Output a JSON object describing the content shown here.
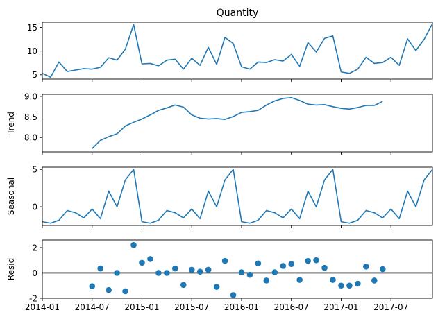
{
  "chart_data": {
    "type": "line",
    "title": "Quantity",
    "dates": [
      "2014-01",
      "2014-02",
      "2014-03",
      "2014-04",
      "2014-05",
      "2014-06",
      "2014-07",
      "2014-08",
      "2014-09",
      "2014-10",
      "2014-11",
      "2014-12",
      "2015-01",
      "2015-02",
      "2015-03",
      "2015-04",
      "2015-05",
      "2015-06",
      "2015-07",
      "2015-08",
      "2015-09",
      "2015-10",
      "2015-11",
      "2015-12",
      "2016-01",
      "2016-02",
      "2016-03",
      "2016-04",
      "2016-05",
      "2016-06",
      "2016-07",
      "2016-08",
      "2016-09",
      "2016-10",
      "2016-11",
      "2016-12",
      "2017-01",
      "2017-02",
      "2017-03",
      "2017-04",
      "2017-05",
      "2017-06",
      "2017-07",
      "2017-08",
      "2017-09",
      "2017-10",
      "2017-11",
      "2017-12"
    ],
    "x_tick_labels": [
      "2014-01",
      "2014-07",
      "2015-01",
      "2015-07",
      "2016-01",
      "2016-07",
      "2017-01",
      "2017-07"
    ],
    "x_tick_positions": [
      "2014-01",
      "2014-07",
      "2015-01",
      "2015-07",
      "2016-01",
      "2016-07",
      "2017-01",
      "2017-07"
    ],
    "xlim": [
      "2014-01",
      "2017-12"
    ],
    "panels": [
      {
        "name": "observed",
        "ylabel": "",
        "ylim": [
          4.1,
          16.1
        ],
        "yticks": [
          5,
          10,
          15
        ],
        "kind": "line",
        "values": [
          5.3,
          4.5,
          7.7,
          5.7,
          6.0,
          6.3,
          6.2,
          6.6,
          8.6,
          8.1,
          10.4,
          15.6,
          7.3,
          7.4,
          6.9,
          8.1,
          8.3,
          6.2,
          8.5,
          7.0,
          10.8,
          7.2,
          12.9,
          11.6,
          6.7,
          6.2,
          7.7,
          7.6,
          8.2,
          7.9,
          9.3,
          6.8,
          11.8,
          9.8,
          12.7,
          13.2,
          5.6,
          5.3,
          6.2,
          8.7,
          7.4,
          7.6,
          8.7,
          7.0,
          12.6,
          10.1,
          12.5,
          15.8
        ]
      },
      {
        "name": "trend",
        "ylabel": "Trend",
        "ylim": [
          7.65,
          9.05
        ],
        "yticks": [
          8.0,
          8.5,
          9.0
        ],
        "kind": "line",
        "values": [
          null,
          null,
          null,
          null,
          null,
          null,
          7.73,
          7.93,
          8.02,
          8.09,
          8.28,
          8.37,
          8.45,
          8.55,
          8.66,
          8.72,
          8.79,
          8.74,
          8.55,
          8.47,
          8.45,
          8.46,
          8.44,
          8.51,
          8.61,
          8.63,
          8.66,
          8.79,
          8.89,
          8.95,
          8.97,
          8.9,
          8.81,
          8.79,
          8.8,
          8.75,
          8.71,
          8.69,
          8.73,
          8.78,
          8.78,
          8.88,
          null,
          null,
          null,
          null,
          null,
          null
        ]
      },
      {
        "name": "seasonal",
        "ylabel": "Seasonal",
        "ylim": [
          -2.5,
          5.3
        ],
        "yticks": [
          0,
          5
        ],
        "kind": "line",
        "values": [
          -2.0,
          -2.2,
          -1.8,
          -0.5,
          -0.8,
          -1.5,
          -0.3,
          -1.6,
          2.1,
          0.0,
          3.6,
          5.0,
          -2.0,
          -2.2,
          -1.8,
          -0.5,
          -0.8,
          -1.5,
          -0.3,
          -1.6,
          2.1,
          0.0,
          3.6,
          5.0,
          -2.0,
          -2.2,
          -1.8,
          -0.5,
          -0.8,
          -1.5,
          -0.3,
          -1.6,
          2.1,
          0.0,
          3.6,
          5.0,
          -2.0,
          -2.2,
          -1.8,
          -0.5,
          -0.8,
          -1.5,
          -0.3,
          -1.6,
          2.1,
          0.0,
          3.6,
          5.0
        ]
      },
      {
        "name": "resid",
        "ylabel": "Resid",
        "ylim": [
          -2.0,
          2.6
        ],
        "yticks": [
          -2,
          0,
          2
        ],
        "kind": "scatter",
        "zero_line": true,
        "values": [
          null,
          null,
          null,
          null,
          null,
          null,
          -1.05,
          0.35,
          -1.35,
          0.0,
          -1.45,
          2.2,
          0.8,
          1.1,
          0.0,
          0.0,
          0.35,
          -0.95,
          0.25,
          0.1,
          0.25,
          -1.1,
          0.95,
          -1.75,
          0.05,
          -0.15,
          0.75,
          -0.6,
          0.05,
          0.55,
          0.7,
          -0.55,
          0.95,
          1.0,
          0.4,
          -0.55,
          -1.0,
          -1.0,
          -0.85,
          0.5,
          -0.6,
          0.3,
          null,
          null,
          null,
          null,
          null,
          null
        ]
      }
    ],
    "colors": {
      "series": "#1f77b4",
      "axes": "#000000"
    }
  }
}
